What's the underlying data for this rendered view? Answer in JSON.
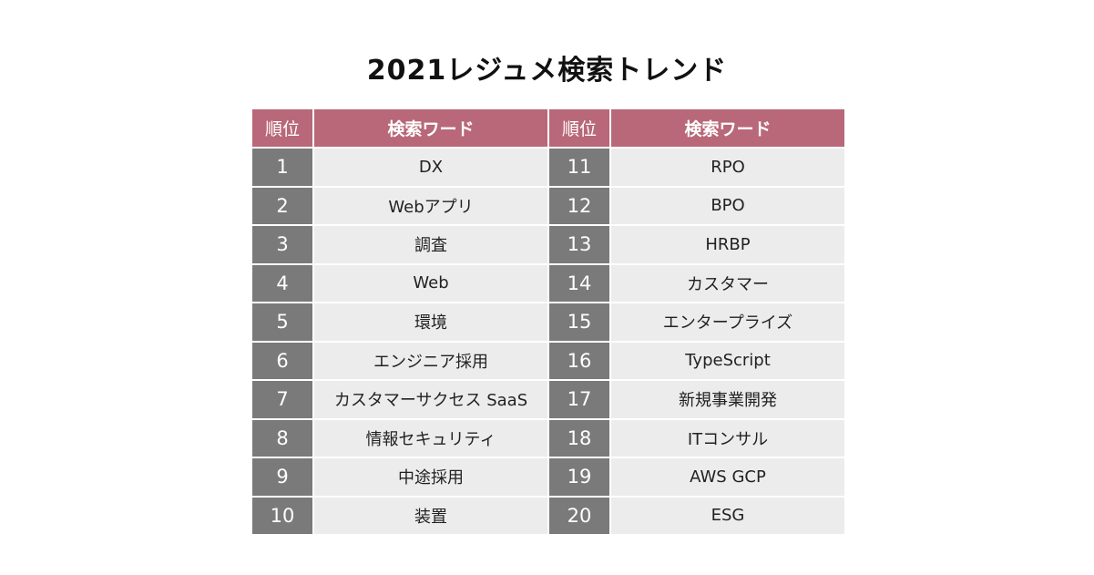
{
  "title": "2021レジュメ検索トレンド",
  "colors": {
    "header_bg": "#b86878",
    "rank_bg": "#7a7a7a",
    "word_bg": "#ececec"
  },
  "headers": {
    "rank": "順位",
    "word": "検索ワード"
  },
  "left_rows": [
    {
      "rank": "1",
      "word": "DX"
    },
    {
      "rank": "2",
      "word": "Webアプリ"
    },
    {
      "rank": "3",
      "word": "調査"
    },
    {
      "rank": "4",
      "word": "Web"
    },
    {
      "rank": "5",
      "word": "環境"
    },
    {
      "rank": "6",
      "word": "エンジニア採用"
    },
    {
      "rank": "7",
      "word": "カスタマーサクセス SaaS"
    },
    {
      "rank": "8",
      "word": "情報セキュリティ"
    },
    {
      "rank": "9",
      "word": "中途採用"
    },
    {
      "rank": "10",
      "word": "装置"
    }
  ],
  "right_rows": [
    {
      "rank": "11",
      "word": "RPO"
    },
    {
      "rank": "12",
      "word": "BPO"
    },
    {
      "rank": "13",
      "word": "HRBP"
    },
    {
      "rank": "14",
      "word": "カスタマー"
    },
    {
      "rank": "15",
      "word": "エンタープライズ"
    },
    {
      "rank": "16",
      "word": "TypeScript"
    },
    {
      "rank": "17",
      "word": "新規事業開発"
    },
    {
      "rank": "18",
      "word": "ITコンサル"
    },
    {
      "rank": "19",
      "word": "AWS GCP"
    },
    {
      "rank": "20",
      "word": "ESG"
    }
  ]
}
